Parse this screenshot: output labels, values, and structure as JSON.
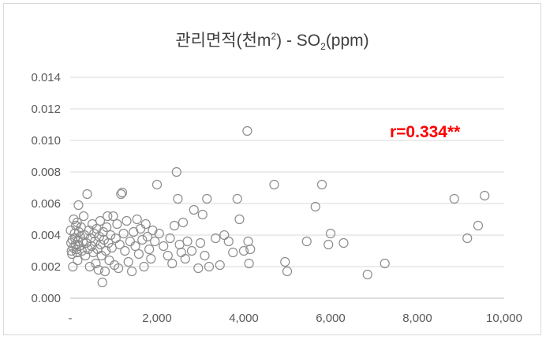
{
  "chart_data": {
    "type": "scatter",
    "title": {
      "main": "관리면적(천m",
      "sup": "2",
      "mid": ") - SO",
      "sub": "2",
      "end": "(ppm)"
    },
    "annotation": "r=0.334**",
    "colors": {
      "point": "#8c8c8c",
      "annotation": "#ff0000",
      "grid": "#d9d9d9",
      "frame": "#d9d9d9"
    },
    "grid": true,
    "xlim": [
      0,
      10000
    ],
    "ylim": [
      0,
      0.014
    ],
    "x_tick_labels": [
      "-",
      "2,000",
      "4,000",
      "6,000",
      "8,000",
      "10,000"
    ],
    "y_tick_labels": [
      "0.000",
      "0.002",
      "0.004",
      "0.006",
      "0.008",
      "0.010",
      "0.012",
      "0.014"
    ],
    "points": [
      [
        10,
        0.0043
      ],
      [
        20,
        0.0035
      ],
      [
        30,
        0.003
      ],
      [
        40,
        0.0028
      ],
      [
        50,
        0.0037
      ],
      [
        60,
        0.002
      ],
      [
        70,
        0.0032
      ],
      [
        80,
        0.005
      ],
      [
        100,
        0.0041
      ],
      [
        110,
        0.0038
      ],
      [
        120,
        0.0034
      ],
      [
        130,
        0.0046
      ],
      [
        140,
        0.0031
      ],
      [
        150,
        0.0029
      ],
      [
        160,
        0.0048
      ],
      [
        170,
        0.0024
      ],
      [
        180,
        0.0036
      ],
      [
        190,
        0.0059
      ],
      [
        200,
        0.0042
      ],
      [
        210,
        0.0033
      ],
      [
        230,
        0.0039
      ],
      [
        250,
        0.0045
      ],
      [
        270,
        0.003
      ],
      [
        290,
        0.0036
      ],
      [
        310,
        0.0052
      ],
      [
        330,
        0.004
      ],
      [
        350,
        0.0027
      ],
      [
        370,
        0.0035
      ],
      [
        390,
        0.0066
      ],
      [
        410,
        0.0031
      ],
      [
        430,
        0.0043
      ],
      [
        450,
        0.002
      ],
      [
        470,
        0.0038
      ],
      [
        490,
        0.0033
      ],
      [
        510,
        0.0047
      ],
      [
        530,
        0.0029
      ],
      [
        550,
        0.0041
      ],
      [
        570,
        0.0036
      ],
      [
        590,
        0.0022
      ],
      [
        610,
        0.0044
      ],
      [
        630,
        0.0031
      ],
      [
        650,
        0.0018
      ],
      [
        670,
        0.0039
      ],
      [
        690,
        0.0049
      ],
      [
        700,
        0.0034
      ],
      [
        720,
        0.0027
      ],
      [
        740,
        0.001
      ],
      [
        760,
        0.0042
      ],
      [
        780,
        0.0037
      ],
      [
        800,
        0.0017
      ],
      [
        820,
        0.003
      ],
      [
        840,
        0.0045
      ],
      [
        860,
        0.0052
      ],
      [
        880,
        0.0035
      ],
      [
        900,
        0.0024
      ],
      [
        930,
        0.004
      ],
      [
        960,
        0.0032
      ],
      [
        990,
        0.0052
      ],
      [
        1020,
        0.0021
      ],
      [
        1050,
        0.0038
      ],
      [
        1080,
        0.0047
      ],
      [
        1110,
        0.0019
      ],
      [
        1140,
        0.0034
      ],
      [
        1170,
        0.0066
      ],
      [
        1200,
        0.0067
      ],
      [
        1230,
        0.0041
      ],
      [
        1260,
        0.003
      ],
      [
        1300,
        0.0049
      ],
      [
        1340,
        0.0023
      ],
      [
        1380,
        0.0036
      ],
      [
        1420,
        0.0017
      ],
      [
        1460,
        0.0042
      ],
      [
        1500,
        0.0033
      ],
      [
        1540,
        0.005
      ],
      [
        1580,
        0.0028
      ],
      [
        1620,
        0.0044
      ],
      [
        1660,
        0.0037
      ],
      [
        1700,
        0.002
      ],
      [
        1740,
        0.0047
      ],
      [
        1780,
        0.0039
      ],
      [
        1820,
        0.0031
      ],
      [
        1860,
        0.0025
      ],
      [
        1900,
        0.0043
      ],
      [
        1950,
        0.0036
      ],
      [
        2000,
        0.0072
      ],
      [
        2050,
        0.0041
      ],
      [
        2150,
        0.0033
      ],
      [
        2250,
        0.0027
      ],
      [
        2300,
        0.0038
      ],
      [
        2350,
        0.0022
      ],
      [
        2400,
        0.0046
      ],
      [
        2450,
        0.008
      ],
      [
        2480,
        0.0063
      ],
      [
        2520,
        0.0034
      ],
      [
        2560,
        0.0029
      ],
      [
        2600,
        0.0048
      ],
      [
        2650,
        0.0025
      ],
      [
        2700,
        0.0036
      ],
      [
        2800,
        0.003
      ],
      [
        2850,
        0.0056
      ],
      [
        2950,
        0.0019
      ],
      [
        3000,
        0.0035
      ],
      [
        3050,
        0.0053
      ],
      [
        3100,
        0.0027
      ],
      [
        3150,
        0.0063
      ],
      [
        3200,
        0.002
      ],
      [
        3350,
        0.0038
      ],
      [
        3450,
        0.0021
      ],
      [
        3550,
        0.004
      ],
      [
        3650,
        0.0036
      ],
      [
        3750,
        0.0029
      ],
      [
        3850,
        0.0063
      ],
      [
        3900,
        0.005
      ],
      [
        4000,
        0.003
      ],
      [
        4080,
        0.0106
      ],
      [
        4100,
        0.0036
      ],
      [
        4120,
        0.0022
      ],
      [
        4150,
        0.0031
      ],
      [
        4700,
        0.0072
      ],
      [
        4950,
        0.0023
      ],
      [
        5000,
        0.0017
      ],
      [
        5450,
        0.0036
      ],
      [
        5650,
        0.0058
      ],
      [
        5800,
        0.0072
      ],
      [
        5950,
        0.0034
      ],
      [
        6000,
        0.0041
      ],
      [
        6300,
        0.0035
      ],
      [
        6850,
        0.0015
      ],
      [
        7250,
        0.0022
      ],
      [
        8850,
        0.0063
      ],
      [
        9150,
        0.0038
      ],
      [
        9400,
        0.0046
      ],
      [
        9550,
        0.0065
      ]
    ]
  }
}
